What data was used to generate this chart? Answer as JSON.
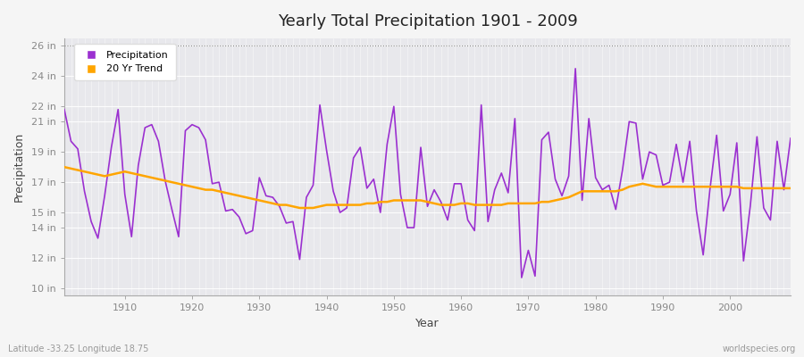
{
  "title": "Yearly Total Precipitation 1901 - 2009",
  "xlabel": "Year",
  "ylabel": "Precipitation",
  "subtitle_left": "Latitude -33.25 Longitude 18.75",
  "subtitle_right": "worldspecies.org",
  "precip_color": "#9B30D0",
  "trend_color": "#FFA500",
  "bg_color": "#F5F5F5",
  "plot_bg_color": "#E8E8EC",
  "ylim": [
    9.5,
    26.5
  ],
  "yticks": [
    10,
    12,
    14,
    15,
    17,
    19,
    21,
    22,
    24,
    26
  ],
  "ytick_labels": [
    "10 in",
    "12 in",
    "14 in",
    "15 in",
    "17 in",
    "19 in",
    "21 in",
    "22 in",
    "24 in",
    "26 in"
  ],
  "xtick_vals": [
    1910,
    1920,
    1930,
    1940,
    1950,
    1960,
    1970,
    1980,
    1990,
    2000
  ],
  "years": [
    1901,
    1902,
    1903,
    1904,
    1905,
    1906,
    1907,
    1908,
    1909,
    1910,
    1911,
    1912,
    1913,
    1914,
    1915,
    1916,
    1917,
    1918,
    1919,
    1920,
    1921,
    1922,
    1923,
    1924,
    1925,
    1926,
    1927,
    1928,
    1929,
    1930,
    1931,
    1932,
    1933,
    1934,
    1935,
    1936,
    1937,
    1938,
    1939,
    1940,
    1941,
    1942,
    1943,
    1944,
    1945,
    1946,
    1947,
    1948,
    1949,
    1950,
    1951,
    1952,
    1953,
    1954,
    1955,
    1956,
    1957,
    1958,
    1959,
    1960,
    1961,
    1962,
    1963,
    1964,
    1965,
    1966,
    1967,
    1968,
    1969,
    1970,
    1971,
    1972,
    1973,
    1974,
    1975,
    1976,
    1977,
    1978,
    1979,
    1980,
    1981,
    1982,
    1983,
    1984,
    1985,
    1986,
    1987,
    1988,
    1989,
    1990,
    1991,
    1992,
    1993,
    1994,
    1995,
    1996,
    1997,
    1998,
    1999,
    2000,
    2001,
    2002,
    2003,
    2004,
    2005,
    2006,
    2007,
    2008,
    2009
  ],
  "precip": [
    21.8,
    19.7,
    19.2,
    16.4,
    14.4,
    13.3,
    16.1,
    19.3,
    21.8,
    16.2,
    13.4,
    18.1,
    20.6,
    20.8,
    19.7,
    17.1,
    15.2,
    13.4,
    20.4,
    20.8,
    20.6,
    19.8,
    16.9,
    17.0,
    15.1,
    15.2,
    14.7,
    13.6,
    13.8,
    17.3,
    16.1,
    16.0,
    15.4,
    14.3,
    14.4,
    11.9,
    16.0,
    16.8,
    22.1,
    19.1,
    16.4,
    15.0,
    15.3,
    18.6,
    19.3,
    16.6,
    17.2,
    15.0,
    19.5,
    22.0,
    16.2,
    14.0,
    14.0,
    19.3,
    15.4,
    16.5,
    15.7,
    14.5,
    16.9,
    16.9,
    14.5,
    13.8,
    22.1,
    14.4,
    16.5,
    17.6,
    16.3,
    21.2,
    10.7,
    12.5,
    10.8,
    19.8,
    20.3,
    17.2,
    16.1,
    17.4,
    24.5,
    15.8,
    21.2,
    17.3,
    16.5,
    16.8,
    15.2,
    17.8,
    21.0,
    20.9,
    17.2,
    19.0,
    18.8,
    16.8,
    17.0,
    19.5,
    17.0,
    19.7,
    15.1,
    12.2,
    16.5,
    20.1,
    15.1,
    16.2,
    19.6,
    11.8,
    15.4,
    20.0,
    15.3,
    14.5,
    19.7,
    16.5,
    19.9
  ],
  "trend": [
    18.0,
    17.9,
    17.8,
    17.7,
    17.6,
    17.5,
    17.4,
    17.5,
    17.6,
    17.7,
    17.6,
    17.5,
    17.4,
    17.3,
    17.2,
    17.1,
    17.0,
    16.9,
    16.8,
    16.7,
    16.6,
    16.5,
    16.5,
    16.4,
    16.3,
    16.2,
    16.1,
    16.0,
    15.9,
    15.8,
    15.7,
    15.6,
    15.5,
    15.5,
    15.4,
    15.3,
    15.3,
    15.3,
    15.4,
    15.5,
    15.5,
    15.5,
    15.5,
    15.5,
    15.5,
    15.6,
    15.6,
    15.7,
    15.7,
    15.8,
    15.8,
    15.8,
    15.8,
    15.8,
    15.7,
    15.6,
    15.5,
    15.5,
    15.5,
    15.6,
    15.6,
    15.5,
    15.5,
    15.5,
    15.5,
    15.5,
    15.6,
    15.6,
    15.6,
    15.6,
    15.6,
    15.7,
    15.7,
    15.8,
    15.9,
    16.0,
    16.2,
    16.4,
    16.4,
    16.4,
    16.4,
    16.4,
    16.4,
    16.5,
    16.7,
    16.8,
    16.9,
    16.8,
    16.7,
    16.7,
    16.7,
    16.7,
    16.7,
    16.7,
    16.7,
    16.7,
    16.7,
    16.7,
    16.7,
    16.7,
    16.7,
    16.6,
    16.6,
    16.6,
    16.6,
    16.6,
    16.6,
    16.6,
    16.6
  ]
}
